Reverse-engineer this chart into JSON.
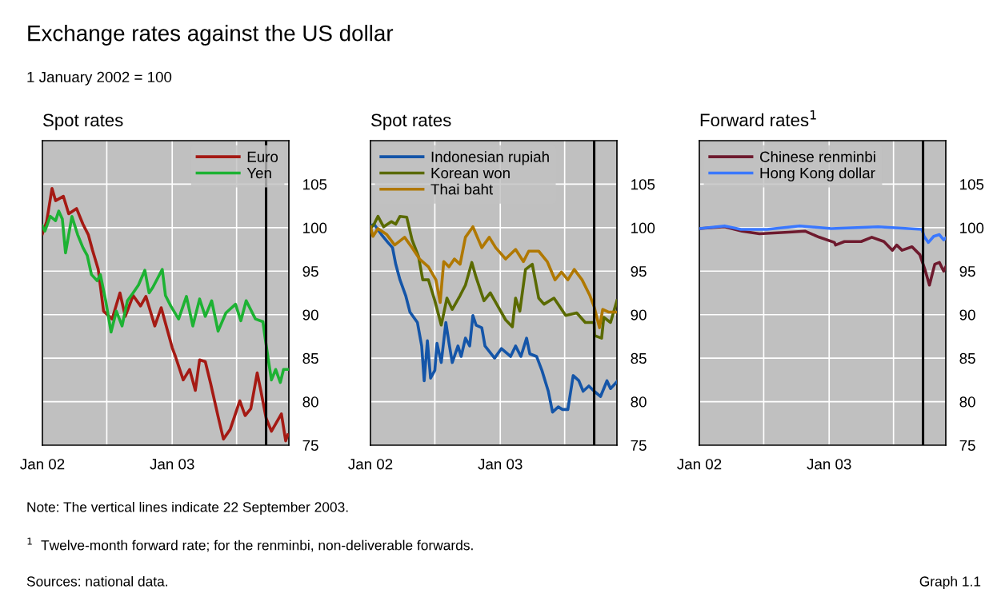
{
  "chart_data": [
    {
      "type": "line",
      "title": "Spot rates",
      "annotations": [
        "Exchange rates against the US dollar",
        "1 January 2002 = 100",
        "Note: The vertical lines indicate 22 September 2003.",
        "$^{1}$  Twelve-month forward rate; for the renminbi, non-deliverable forwards.",
        "Sources: national data.",
        "Graph 1.1"
      ],
      "xlim": [
        "2002-01-01",
        "2003-11-25"
      ],
      "ylim": [
        75,
        110
      ],
      "yticks": [
        75,
        80,
        85,
        90,
        95,
        100,
        105
      ],
      "xticks": [
        {
          "value": "2002-01-01",
          "label": "Jan 02"
        },
        {
          "value": "2002-07-01",
          "label": null
        },
        {
          "value": "2003-01-01",
          "label": "Jan 03"
        },
        {
          "value": "2003-07-01",
          "label": null
        }
      ],
      "grid": true,
      "legend": "top right",
      "line_style": "solid",
      "ref_lines": [
        {
          "axis": "x",
          "value": "2003-09-22",
          "label": null,
          "color": "#000000"
        }
      ],
      "series": [
        {
          "name": "Euro",
          "color": "#a51a14",
          "x": [
            "2002-01-01",
            "2002-01-13",
            "2002-01-28",
            "2002-02-07",
            "2002-03-01",
            "2002-03-16",
            "2002-04-07",
            "2002-04-25",
            "2002-05-10",
            "2002-05-22",
            "2002-06-07",
            "2002-06-22",
            "2002-07-16",
            "2002-08-07",
            "2002-08-22",
            "2002-09-13",
            "2002-10-04",
            "2002-10-19",
            "2002-11-13",
            "2002-12-01",
            "2003-01-01",
            "2003-01-10",
            "2003-02-01",
            "2003-02-19",
            "2003-03-07",
            "2003-03-19",
            "2003-04-04",
            "2003-04-19",
            "2003-05-10",
            "2003-05-25",
            "2003-06-13",
            "2003-07-10",
            "2003-07-25",
            "2003-08-10",
            "2003-08-28",
            "2003-09-07",
            "2003-09-22",
            "2003-10-07",
            "2003-11-04",
            "2003-11-16",
            "2003-11-22"
          ],
          "values": [
            99.3,
            100.7,
            104.5,
            103.1,
            103.6,
            101.6,
            102.2,
            100.4,
            99.2,
            97.4,
            95.2,
            90.4,
            89.5,
            92.5,
            89.8,
            92.2,
            91.0,
            92.1,
            88.7,
            90.8,
            86.2,
            85.2,
            82.5,
            83.7,
            81.3,
            84.8,
            84.6,
            82.1,
            78.3,
            75.7,
            76.8,
            80.1,
            78.4,
            79.2,
            83.3,
            81.3,
            78.1,
            76.6,
            78.6,
            75.5,
            76.2
          ]
        },
        {
          "name": "Yen",
          "color": "#1db233",
          "x": [
            "2002-01-01",
            "2002-01-08",
            "2002-01-23",
            "2002-02-07",
            "2002-02-16",
            "2002-02-26",
            "2002-03-07",
            "2002-03-25",
            "2002-04-10",
            "2002-04-25",
            "2002-05-07",
            "2002-05-19",
            "2002-06-04",
            "2002-06-13",
            "2002-06-28",
            "2002-07-13",
            "2002-07-28",
            "2002-08-13",
            "2002-08-28",
            "2002-09-13",
            "2002-09-28",
            "2002-10-16",
            "2002-10-28",
            "2002-11-07",
            "2002-12-04",
            "2002-12-13",
            "2002-12-28",
            "2003-01-19",
            "2003-02-10",
            "2003-02-28",
            "2003-03-19",
            "2003-04-04",
            "2003-04-22",
            "2003-05-10",
            "2003-06-01",
            "2003-06-28",
            "2003-07-13",
            "2003-07-28",
            "2003-08-23",
            "2003-09-13",
            "2003-09-19",
            "2003-09-28",
            "2003-10-07",
            "2003-10-19",
            "2003-11-01",
            "2003-11-10",
            "2003-11-23"
          ],
          "values": [
            100.2,
            99.6,
            101.3,
            100.8,
            101.9,
            101.0,
            97.1,
            101.3,
            99.2,
            97.7,
            96.8,
            94.6,
            93.9,
            94.6,
            91.6,
            88.0,
            90.4,
            88.7,
            91.6,
            92.5,
            93.4,
            95.1,
            92.5,
            93.1,
            95.2,
            92.2,
            91.0,
            89.5,
            92.1,
            88.7,
            91.8,
            89.8,
            91.6,
            88.1,
            90.2,
            91.2,
            89.3,
            91.6,
            89.5,
            89.2,
            87.4,
            84.9,
            82.5,
            83.7,
            82.2,
            83.7,
            83.7
          ]
        }
      ]
    },
    {
      "type": "line",
      "title": "Spot rates",
      "xlim": [
        "2002-01-01",
        "2003-11-25"
      ],
      "ylim": [
        75,
        110
      ],
      "yticks": [
        75,
        80,
        85,
        90,
        95,
        100,
        105
      ],
      "xticks": [
        {
          "value": "2002-01-01",
          "label": "Jan 02"
        },
        {
          "value": "2002-07-01",
          "label": null
        },
        {
          "value": "2003-01-01",
          "label": "Jan 03"
        },
        {
          "value": "2003-07-01",
          "label": null
        }
      ],
      "grid": true,
      "legend": "top left",
      "line_style": "solid",
      "ref_lines": [
        {
          "axis": "x",
          "value": "2003-09-22",
          "label": null,
          "color": "#000000"
        }
      ],
      "series": [
        {
          "name": "Indonesian rupiah",
          "color": "#1455a8",
          "x": [
            "2002-01-01",
            "2002-01-11",
            "2002-02-01",
            "2002-02-19",
            "2002-03-04",
            "2002-03-13",
            "2002-03-25",
            "2002-04-10",
            "2002-04-22",
            "2002-05-13",
            "2002-05-25",
            "2002-06-01",
            "2002-06-10",
            "2002-06-19",
            "2002-07-01",
            "2002-07-07",
            "2002-07-19",
            "2002-08-01",
            "2002-08-10",
            "2002-08-19",
            "2002-09-04",
            "2002-09-13",
            "2002-09-25",
            "2002-10-07",
            "2002-10-16",
            "2002-10-25",
            "2002-11-10",
            "2002-11-19",
            "2002-12-16",
            "2003-01-04",
            "2003-01-30",
            "2003-02-13",
            "2003-02-28",
            "2003-03-16",
            "2003-03-25",
            "2003-04-13",
            "2003-04-28",
            "2003-05-16",
            "2003-05-28",
            "2003-06-13",
            "2003-06-25",
            "2003-07-10",
            "2003-07-25",
            "2003-08-10",
            "2003-08-22",
            "2003-09-07",
            "2003-09-22",
            "2003-10-10",
            "2003-10-28",
            "2003-11-07",
            "2003-11-25"
          ],
          "values": [
            100.2,
            100.4,
            99.2,
            98.3,
            97.7,
            95.8,
            94.0,
            92.2,
            90.3,
            89.1,
            86.4,
            82.4,
            87.0,
            82.7,
            83.6,
            86.7,
            84.5,
            89.1,
            86.7,
            84.5,
            86.4,
            85.2,
            87.3,
            86.4,
            89.9,
            88.8,
            88.5,
            86.4,
            85.0,
            86.1,
            85.2,
            86.4,
            85.2,
            87.3,
            85.5,
            85.2,
            83.6,
            81.2,
            78.8,
            79.4,
            79.1,
            79.1,
            83.0,
            82.4,
            81.2,
            81.8,
            81.2,
            80.6,
            82.4,
            81.5,
            82.3
          ]
        },
        {
          "name": "Korean won",
          "color": "#5a6a00",
          "x": [
            "2002-01-01",
            "2002-01-11",
            "2002-01-22",
            "2002-02-07",
            "2002-03-01",
            "2002-03-13",
            "2002-03-25",
            "2002-04-13",
            "2002-04-28",
            "2002-05-16",
            "2002-05-28",
            "2002-06-13",
            "2002-07-01",
            "2002-07-19",
            "2002-08-04",
            "2002-08-19",
            "2002-09-10",
            "2002-09-25",
            "2002-10-13",
            "2002-10-25",
            "2002-11-16",
            "2002-12-04",
            "2002-12-22",
            "2003-01-16",
            "2003-02-04",
            "2003-02-13",
            "2003-02-25",
            "2003-03-13",
            "2003-04-01",
            "2003-04-19",
            "2003-05-04",
            "2003-06-01",
            "2003-07-04",
            "2003-08-04",
            "2003-08-28",
            "2003-09-22",
            "2003-09-23",
            "2003-10-13",
            "2003-10-19",
            "2003-11-07",
            "2003-11-25"
          ],
          "values": [
            99.9,
            100.4,
            101.3,
            100.1,
            100.7,
            100.4,
            101.3,
            101.2,
            98.6,
            96.7,
            94.0,
            94.0,
            91.6,
            88.8,
            91.9,
            90.6,
            92.2,
            93.4,
            96.0,
            94.3,
            91.6,
            92.5,
            91.2,
            89.4,
            88.6,
            91.9,
            90.4,
            95.2,
            95.8,
            91.9,
            91.2,
            91.9,
            89.9,
            90.2,
            89.1,
            89.1,
            87.6,
            87.3,
            89.7,
            89.1,
            91.6
          ]
        },
        {
          "name": "Thai baht",
          "color": "#b07800",
          "x": [
            "2002-01-01",
            "2002-01-08",
            "2002-01-22",
            "2002-02-16",
            "2002-03-10",
            "2002-04-07",
            "2002-04-28",
            "2002-05-19",
            "2002-06-13",
            "2002-07-04",
            "2002-07-16",
            "2002-07-26",
            "2002-08-10",
            "2002-08-25",
            "2002-09-10",
            "2002-09-25",
            "2002-10-16",
            "2002-11-10",
            "2002-12-01",
            "2002-12-19",
            "2003-01-16",
            "2003-02-13",
            "2003-03-07",
            "2003-03-22",
            "2003-04-19",
            "2003-05-13",
            "2003-06-04",
            "2003-06-22",
            "2003-07-10",
            "2003-07-28",
            "2003-08-19",
            "2003-09-10",
            "2003-09-22",
            "2003-10-07",
            "2003-10-16",
            "2003-11-01",
            "2003-11-25"
          ],
          "values": [
            100.1,
            99.0,
            99.9,
            99.2,
            98.0,
            98.9,
            97.7,
            96.4,
            95.5,
            94.0,
            91.4,
            96.1,
            95.5,
            96.4,
            95.8,
            98.9,
            100.1,
            97.7,
            98.9,
            97.7,
            96.4,
            97.5,
            96.1,
            97.3,
            97.3,
            96.1,
            94.0,
            94.9,
            94.0,
            95.2,
            94.0,
            92.2,
            90.9,
            88.5,
            90.6,
            90.3,
            90.3
          ]
        }
      ]
    },
    {
      "type": "line",
      "title": "Forward rates$^{1}$",
      "xlim": [
        "2002-01-01",
        "2003-11-25"
      ],
      "ylim": [
        75,
        110
      ],
      "yticks": [
        75,
        80,
        85,
        90,
        95,
        100,
        105
      ],
      "xticks": [
        {
          "value": "2002-01-01",
          "label": "Jan 02"
        },
        {
          "value": "2002-07-01",
          "label": null
        },
        {
          "value": "2003-01-01",
          "label": "Jan 03"
        },
        {
          "value": "2003-07-01",
          "label": null
        }
      ],
      "grid": true,
      "legend": "top left",
      "line_style": "solid",
      "ref_lines": [
        {
          "axis": "x",
          "value": "2003-09-22",
          "label": null,
          "color": "#000000"
        }
      ],
      "series": [
        {
          "name": "Chinese renminbi",
          "color": "#6e1a2e",
          "x": [
            "2002-01-01",
            "2002-03-13",
            "2002-05-01",
            "2002-06-19",
            "2002-09-19",
            "2002-10-25",
            "2002-12-04",
            "2003-01-16",
            "2003-01-19",
            "2003-02-13",
            "2003-04-01",
            "2003-05-01",
            "2003-06-04",
            "2003-06-28",
            "2003-07-10",
            "2003-07-25",
            "2003-08-22",
            "2003-09-13",
            "2003-09-28",
            "2003-10-10",
            "2003-10-25",
            "2003-11-07",
            "2003-11-19",
            "2003-11-25"
          ],
          "values": [
            99.9,
            100.1,
            99.6,
            99.3,
            99.5,
            99.6,
            98.9,
            98.3,
            98.0,
            98.4,
            98.4,
            98.9,
            98.4,
            97.4,
            98.0,
            97.4,
            97.8,
            96.9,
            95.1,
            93.4,
            95.8,
            96.0,
            95.0,
            95.5
          ]
        },
        {
          "name": "Hong Kong dollar",
          "color": "#3a78ff",
          "x": [
            "2002-01-01",
            "2002-03-13",
            "2002-04-28",
            "2002-07-10",
            "2002-10-10",
            "2003-01-07",
            "2003-05-19",
            "2003-09-19",
            "2003-09-25",
            "2003-10-07",
            "2003-10-22",
            "2003-11-07",
            "2003-11-19",
            "2003-11-25"
          ],
          "values": [
            99.9,
            100.2,
            99.8,
            99.8,
            100.2,
            99.9,
            100.1,
            99.8,
            99.0,
            98.3,
            99.0,
            99.2,
            98.6,
            98.8
          ]
        }
      ]
    }
  ]
}
